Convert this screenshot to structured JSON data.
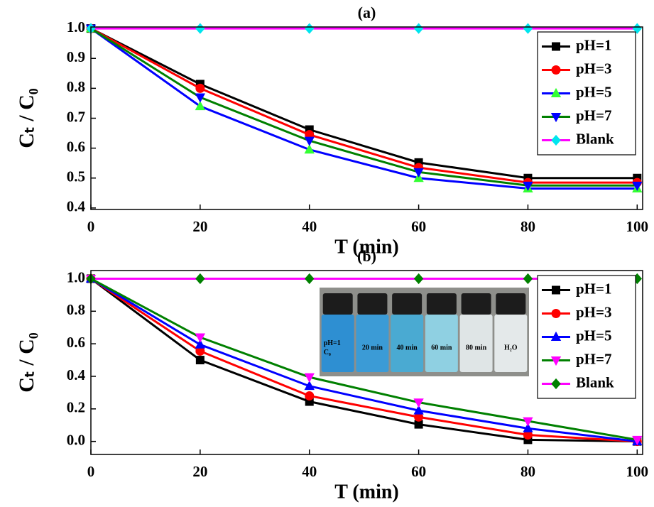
{
  "chart_data": [
    {
      "type": "line",
      "title": "(a)",
      "xlabel": "T (min)",
      "ylabel": "Cₜ / C₀",
      "x": [
        0,
        20,
        40,
        60,
        80,
        100
      ],
      "xlim": [
        0,
        101
      ],
      "xticks": [
        0,
        20,
        40,
        60,
        80,
        100
      ],
      "ylim": [
        0.395,
        1.005
      ],
      "yticks": [
        0.4,
        0.5,
        0.6,
        0.7,
        0.8,
        0.9,
        {
          "value": 1,
          "label": "1.0"
        }
      ],
      "legend": "upper right",
      "series": [
        {
          "name": "pH=1",
          "color": "#000000",
          "marker_color": "#000000",
          "marker": "square",
          "values": [
            1,
            0.814,
            0.662,
            0.552,
            0.5,
            0.5
          ]
        },
        {
          "name": "pH=3",
          "color": "#ff0000",
          "marker_color": "#ff0000",
          "marker": "circle",
          "values": [
            1,
            0.8,
            0.645,
            0.535,
            0.485,
            0.485
          ]
        },
        {
          "name": "pH=5",
          "color": "#0000ff",
          "marker_color": "#33ff33",
          "marker": "triangle",
          "values": [
            1,
            0.74,
            0.595,
            0.5,
            0.465,
            0.465
          ]
        },
        {
          "name": "pH=7",
          "color": "#008000",
          "marker_color": "#0000ff",
          "marker": "triangle-down",
          "values": [
            1,
            0.77,
            0.625,
            0.52,
            0.475,
            0.475
          ]
        },
        {
          "name": "Blank",
          "color": "#ff00ff",
          "marker_color": "#00e5ee",
          "marker": "diamond",
          "values": [
            1,
            1,
            1,
            1,
            1,
            1
          ]
        }
      ]
    },
    {
      "type": "line",
      "title": "(b)",
      "xlabel": "T (min)",
      "ylabel": "Cₜ / C₀",
      "x": [
        0,
        20,
        40,
        60,
        80,
        100
      ],
      "xlim": [
        0,
        101
      ],
      "xticks": [
        0,
        20,
        40,
        60,
        80,
        100
      ],
      "ylim": [
        -0.08,
        1.05
      ],
      "yticks": [
        {
          "value": 0,
          "label": "0.0"
        },
        0.2,
        0.4,
        0.6,
        0.8,
        {
          "value": 1,
          "label": "1.0"
        }
      ],
      "legend": "upper right",
      "series": [
        {
          "name": "pH=1",
          "color": "#000000",
          "marker_color": "#000000",
          "marker": "square",
          "values": [
            1,
            0.5,
            0.245,
            0.105,
            0.01,
            0
          ]
        },
        {
          "name": "pH=3",
          "color": "#ff0000",
          "marker_color": "#ff0000",
          "marker": "circle",
          "values": [
            1,
            0.555,
            0.28,
            0.15,
            0.04,
            0
          ]
        },
        {
          "name": "pH=5",
          "color": "#0000ff",
          "marker_color": "#0000ff",
          "marker": "triangle",
          "values": [
            1,
            0.595,
            0.34,
            0.19,
            0.08,
            0
          ]
        },
        {
          "name": "pH=7",
          "color": "#008000",
          "marker_color": "#ff00ff",
          "marker": "triangle-down",
          "values": [
            1,
            0.64,
            0.395,
            0.24,
            0.125,
            0.01
          ]
        },
        {
          "name": "Blank",
          "color": "#ff00ff",
          "marker_color": "#008000",
          "marker": "diamond",
          "values": [
            1,
            1,
            1,
            1,
            1,
            1
          ]
        }
      ],
      "inset_labels": [
        [
          "pH=1",
          "C₀"
        ],
        [
          "20 min"
        ],
        [
          "40 min"
        ],
        [
          "60 min"
        ],
        [
          "80 min"
        ],
        [
          "H₂O"
        ]
      ]
    }
  ]
}
